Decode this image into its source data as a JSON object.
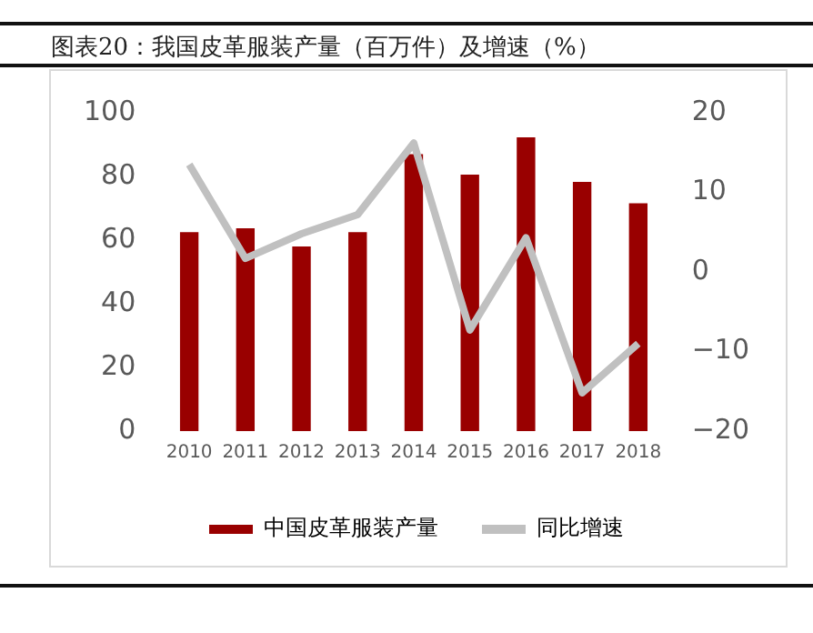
{
  "chart_data": {
    "type": "bar",
    "title": "图表20：我国皮革服装产量（百万件）及增速（%）",
    "categories": [
      "2010",
      "2011",
      "2012",
      "2013",
      "2014",
      "2015",
      "2016",
      "2017",
      "2018"
    ],
    "series": [
      {
        "name": "中国皮革服装产量",
        "color": "#990000",
        "values": [
          62.5,
          63.7,
          58,
          62.5,
          87,
          80.6,
          92.3,
          78.3,
          71.6
        ]
      },
      {
        "name": "同比增速",
        "type": "line",
        "axis": "y2",
        "color": "#c0c0c0",
        "values": [
          13.5,
          1.7,
          4.8,
          7.2,
          16.2,
          -7.3,
          4.3,
          -15.2,
          -9
        ]
      }
    ],
    "ylim": [
      0,
      100
    ],
    "yticks": [
      0,
      20,
      40,
      60,
      80,
      100
    ],
    "y2lim": [
      -20,
      20
    ],
    "y2ticks": [
      -20,
      -10,
      0,
      10,
      20
    ],
    "grid": false,
    "legend": "bottom",
    "marker": "none",
    "line_style": "solid"
  }
}
